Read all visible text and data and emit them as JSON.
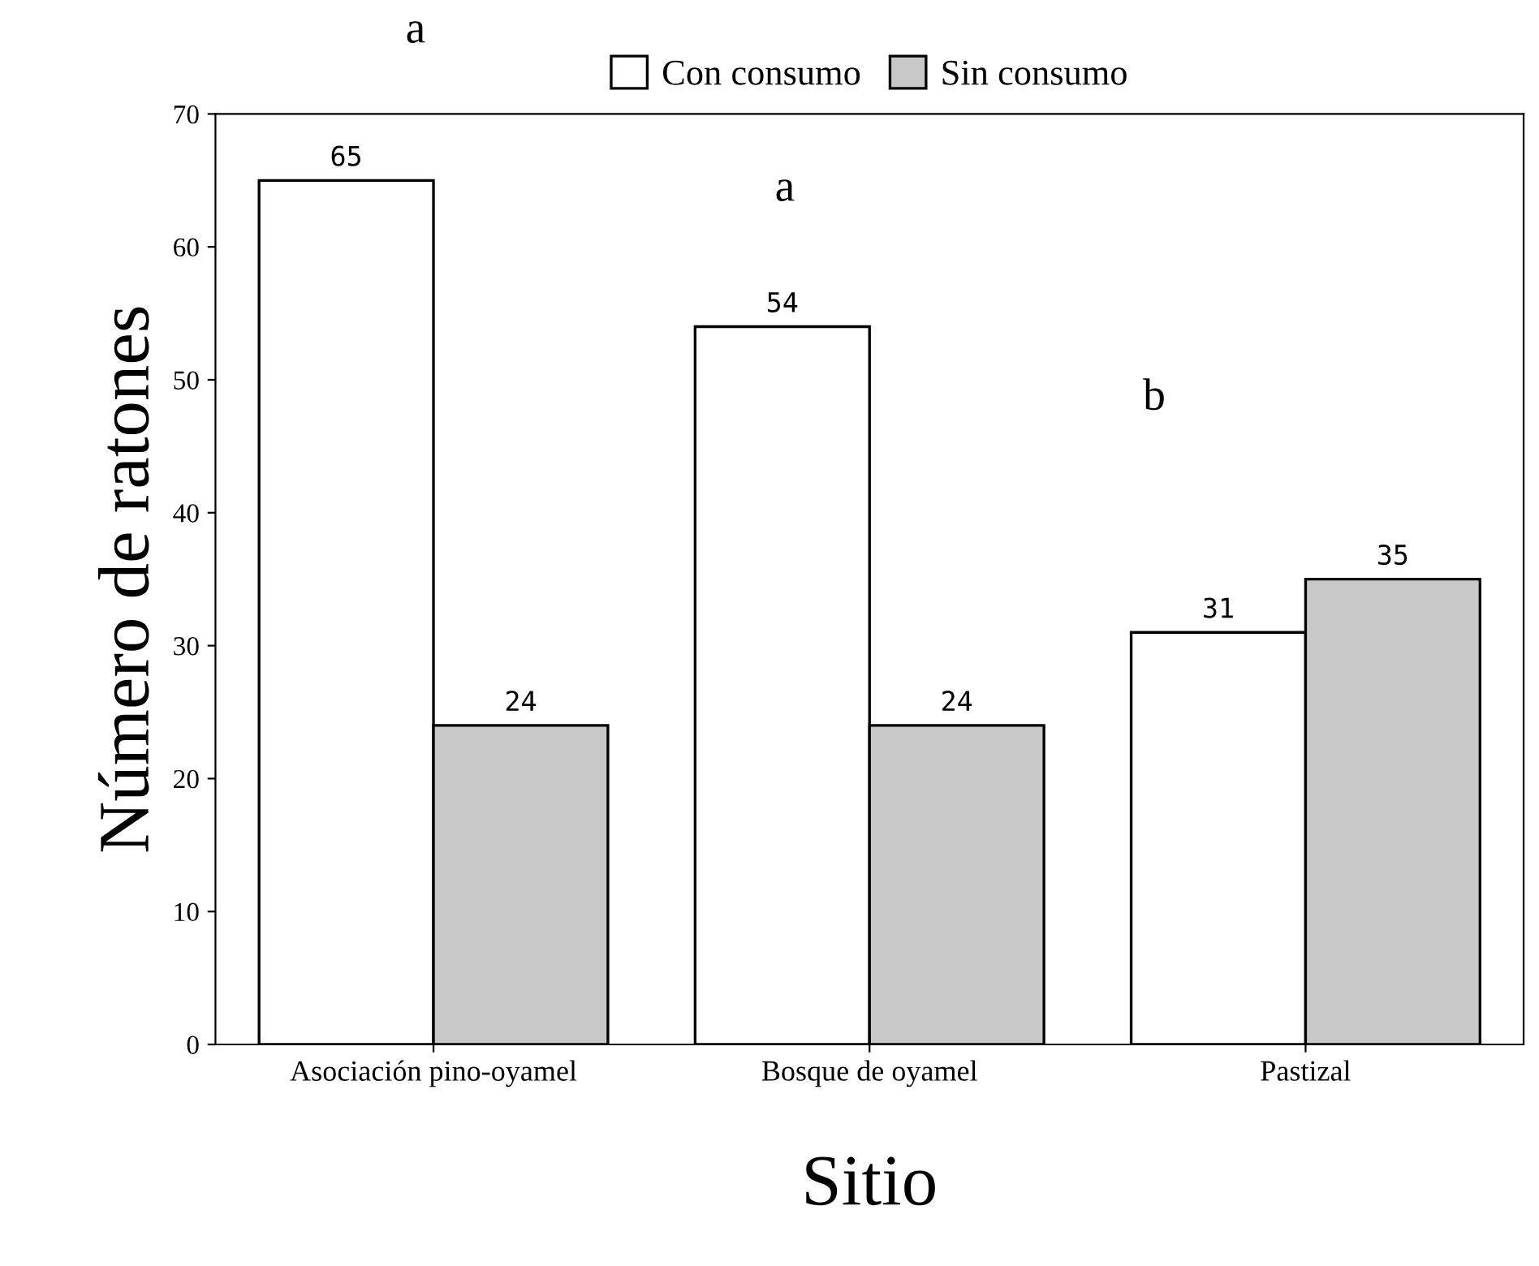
{
  "chart_data": {
    "type": "bar",
    "xlabel": "Sitio",
    "ylabel": "Número de ratones",
    "categories": [
      "Asociación pino-oyamel",
      "Bosque de oyamel",
      "Pastizal"
    ],
    "series": [
      {
        "name": "Con consumo",
        "color": "#ffffff",
        "values": [
          65,
          54,
          31
        ]
      },
      {
        "name": "Sin consumo",
        "color": "#c8c8c8",
        "values": [
          24,
          24,
          35
        ]
      }
    ],
    "ylim": [
      0,
      70
    ],
    "yticks": [
      0,
      10,
      20,
      30,
      40,
      50,
      60,
      70
    ],
    "data_labels": true,
    "grid": false,
    "legend": "top",
    "annotations": [
      "a",
      "a",
      "b"
    ]
  }
}
